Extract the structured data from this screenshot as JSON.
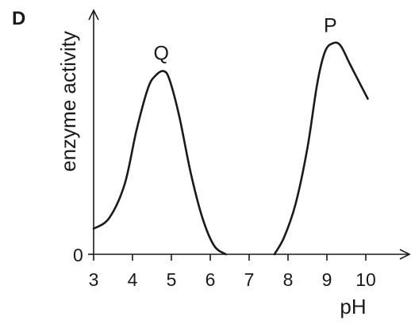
{
  "chart_data": {
    "type": "line",
    "panel_label": "D",
    "xlabel": "pH",
    "ylabel": "enzyme activity",
    "x_ticks": [
      "3",
      "4",
      "5",
      "6",
      "7",
      "8",
      "9",
      "10"
    ],
    "y_ticks": [
      "0"
    ],
    "xlim": [
      3,
      10.5
    ],
    "ylim": [
      0,
      1.0
    ],
    "grid": false,
    "series": [
      {
        "name": "Q",
        "points": [
          {
            "x": 3.0,
            "y": 0.12
          },
          {
            "x": 3.4,
            "y": 0.17
          },
          {
            "x": 3.8,
            "y": 0.33
          },
          {
            "x": 4.1,
            "y": 0.58
          },
          {
            "x": 4.4,
            "y": 0.78
          },
          {
            "x": 4.6,
            "y": 0.84
          },
          {
            "x": 4.8,
            "y": 0.86
          },
          {
            "x": 4.95,
            "y": 0.82
          },
          {
            "x": 5.2,
            "y": 0.65
          },
          {
            "x": 5.5,
            "y": 0.38
          },
          {
            "x": 5.8,
            "y": 0.17
          },
          {
            "x": 6.1,
            "y": 0.04
          },
          {
            "x": 6.4,
            "y": 0.0
          }
        ]
      },
      {
        "name": "P",
        "points": [
          {
            "x": 7.65,
            "y": 0.0
          },
          {
            "x": 7.9,
            "y": 0.08
          },
          {
            "x": 8.2,
            "y": 0.24
          },
          {
            "x": 8.5,
            "y": 0.5
          },
          {
            "x": 8.75,
            "y": 0.8
          },
          {
            "x": 8.95,
            "y": 0.95
          },
          {
            "x": 9.15,
            "y": 0.99
          },
          {
            "x": 9.35,
            "y": 0.98
          },
          {
            "x": 9.6,
            "y": 0.89
          },
          {
            "x": 10.05,
            "y": 0.73
          }
        ]
      }
    ]
  }
}
